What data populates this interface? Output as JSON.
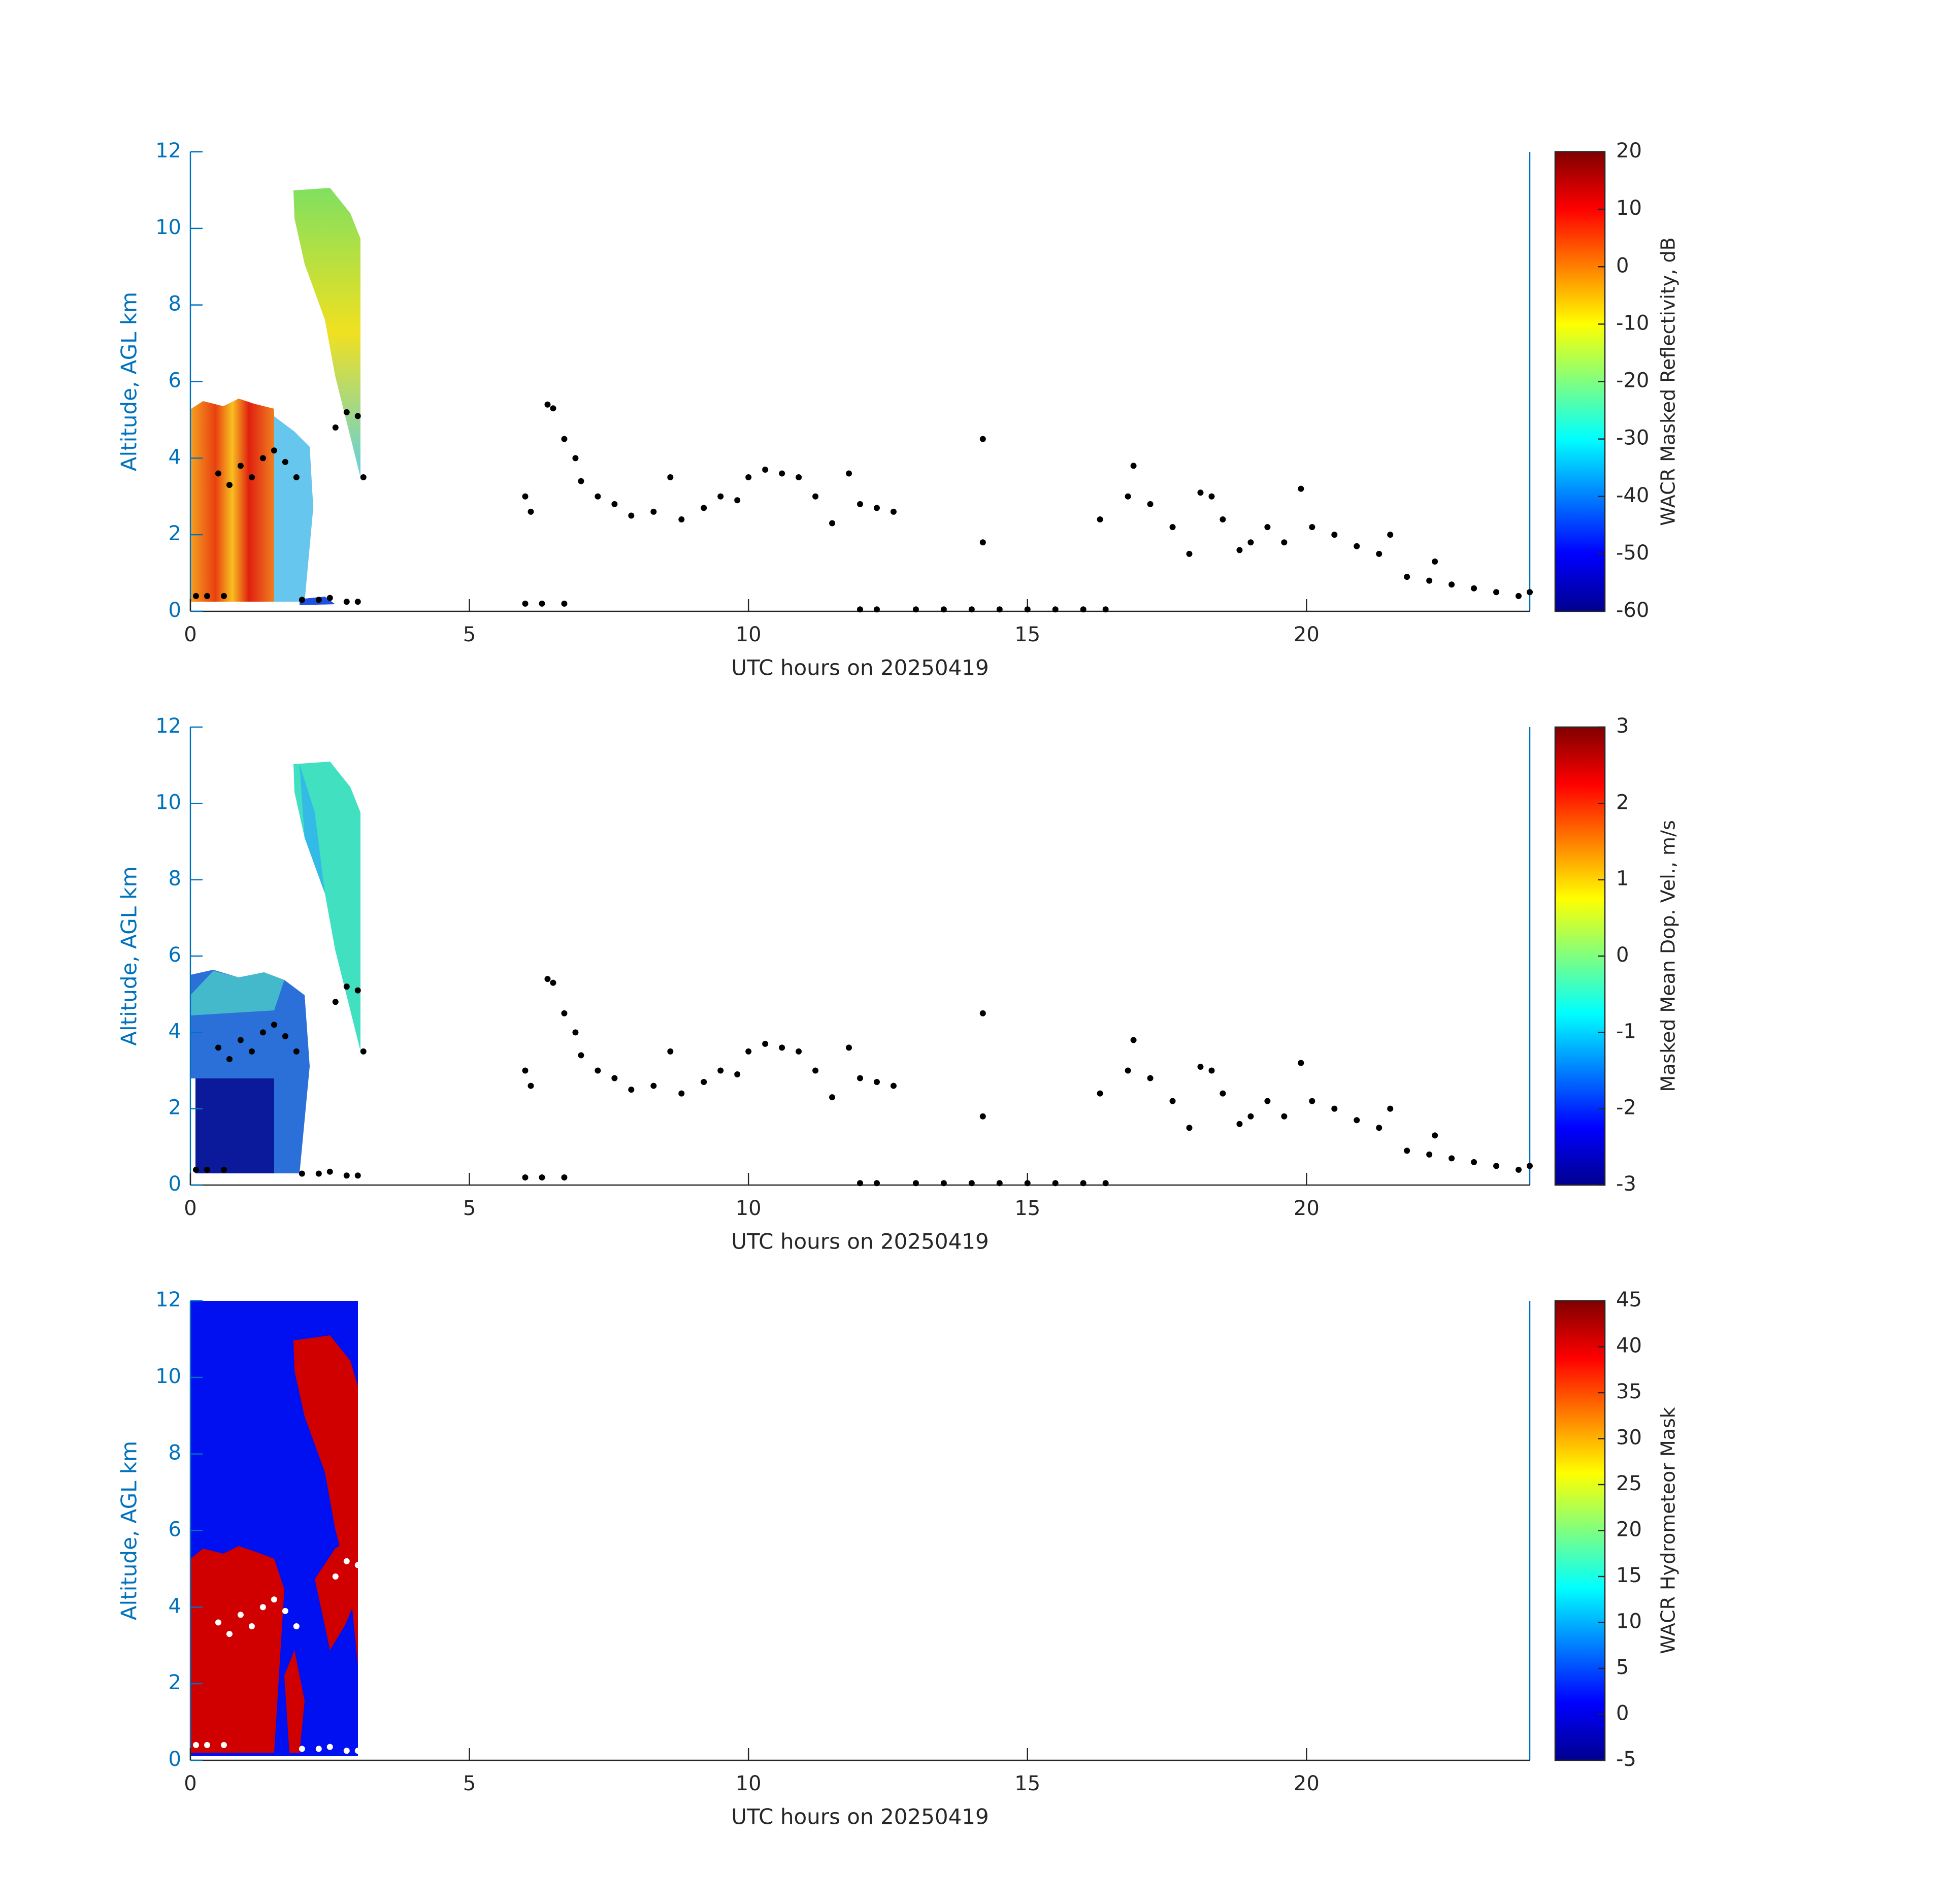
{
  "chart_data": [
    {
      "type": "scatter",
      "xlabel": "UTC hours on 20250419",
      "ylabel": "Altitude, AGL km",
      "xlim": [
        0,
        24
      ],
      "ylim": [
        0,
        12
      ],
      "xticks": [
        0,
        5,
        10,
        15,
        20
      ],
      "yticks": [
        0,
        2,
        4,
        6,
        8,
        10,
        12
      ],
      "color": "#000000",
      "x": [
        0.1,
        0.3,
        0.6,
        0.5,
        0.7,
        0.9,
        1.1,
        1.3,
        1.5,
        1.7,
        1.9,
        2.0,
        2.3,
        2.5,
        2.8,
        3.0,
        2.6,
        2.8,
        3.0,
        3.1,
        6.0,
        6.1,
        6.0,
        6.3,
        6.7,
        6.4,
        6.5,
        6.7,
        6.9,
        7.0,
        7.3,
        7.6,
        7.9,
        8.3,
        8.6,
        8.8,
        9.2,
        9.5,
        9.8,
        10.0,
        10.3,
        10.6,
        10.9,
        11.2,
        11.5,
        11.8,
        12.0,
        12.3,
        12.6,
        12.0,
        12.3,
        13.0,
        13.5,
        14.0,
        14.5,
        15.0,
        15.5,
        16.0,
        16.4,
        14.2,
        14.2,
        16.3,
        16.8,
        16.9,
        17.2,
        17.6,
        17.9,
        18.1,
        18.3,
        18.5,
        18.8,
        19.0,
        19.3,
        19.6,
        19.9,
        20.1,
        20.5,
        20.9,
        21.3,
        21.5,
        21.8,
        22.2,
        22.6,
        22.3,
        23.0,
        23.4,
        23.8,
        24.0
      ],
      "y": [
        0.4,
        0.4,
        0.4,
        3.6,
        3.3,
        3.8,
        3.5,
        4.0,
        4.2,
        3.9,
        3.5,
        0.3,
        0.3,
        0.35,
        0.25,
        0.25,
        4.8,
        5.2,
        5.1,
        3.5,
        3.0,
        2.6,
        0.2,
        0.2,
        0.2,
        5.4,
        5.3,
        4.5,
        4.0,
        3.4,
        3.0,
        2.8,
        2.5,
        2.6,
        3.5,
        2.4,
        2.7,
        3.0,
        2.9,
        3.5,
        3.7,
        3.6,
        3.5,
        3.0,
        2.3,
        3.6,
        2.8,
        2.7,
        2.6,
        0.05,
        0.05,
        0.05,
        0.05,
        0.05,
        0.05,
        0.05,
        0.05,
        0.05,
        0.05,
        4.5,
        1.8,
        2.4,
        3.0,
        3.8,
        2.8,
        2.2,
        1.5,
        3.1,
        3.0,
        2.4,
        1.6,
        1.8,
        2.2,
        1.8,
        3.2,
        2.2,
        2.0,
        1.7,
        1.5,
        2.0,
        0.9,
        0.8,
        0.7,
        1.3,
        0.6,
        0.5,
        0.4,
        0.5
      ],
      "colorbar": {
        "label": "WACR Masked Reflectivity, dB",
        "lim": [
          -60,
          20
        ],
        "ticks": [
          -60,
          -50,
          -40,
          -30,
          -20,
          -10,
          0,
          10,
          20
        ],
        "colormap": "jet"
      }
    },
    {
      "type": "scatter",
      "xlabel": "UTC hours on 20250419",
      "ylabel": "Altitude, AGL km",
      "xlim": [
        0,
        24
      ],
      "ylim": [
        0,
        12
      ],
      "xticks": [
        0,
        5,
        10,
        15,
        20
      ],
      "yticks": [
        0,
        2,
        4,
        6,
        8,
        10,
        12
      ],
      "color": "#000000",
      "x": [
        0.1,
        0.3,
        0.6,
        0.5,
        0.7,
        0.9,
        1.1,
        1.3,
        1.5,
        1.7,
        1.9,
        2.0,
        2.3,
        2.5,
        2.8,
        3.0,
        2.6,
        2.8,
        3.0,
        3.1,
        6.0,
        6.1,
        6.0,
        6.3,
        6.7,
        6.4,
        6.5,
        6.7,
        6.9,
        7.0,
        7.3,
        7.6,
        7.9,
        8.3,
        8.6,
        8.8,
        9.2,
        9.5,
        9.8,
        10.0,
        10.3,
        10.6,
        10.9,
        11.2,
        11.5,
        11.8,
        12.0,
        12.3,
        12.6,
        12.0,
        12.3,
        13.0,
        13.5,
        14.0,
        14.5,
        15.0,
        15.5,
        16.0,
        16.4,
        14.2,
        14.2,
        16.3,
        16.8,
        16.9,
        17.2,
        17.6,
        17.9,
        18.1,
        18.3,
        18.5,
        18.8,
        19.0,
        19.3,
        19.6,
        19.9,
        20.1,
        20.5,
        20.9,
        21.3,
        21.5,
        21.8,
        22.2,
        22.6,
        22.3,
        23.0,
        23.4,
        23.8,
        24.0
      ],
      "y": [
        0.4,
        0.4,
        0.4,
        3.6,
        3.3,
        3.8,
        3.5,
        4.0,
        4.2,
        3.9,
        3.5,
        0.3,
        0.3,
        0.35,
        0.25,
        0.25,
        4.8,
        5.2,
        5.1,
        3.5,
        3.0,
        2.6,
        0.2,
        0.2,
        0.2,
        5.4,
        5.3,
        4.5,
        4.0,
        3.4,
        3.0,
        2.8,
        2.5,
        2.6,
        3.5,
        2.4,
        2.7,
        3.0,
        2.9,
        3.5,
        3.7,
        3.6,
        3.5,
        3.0,
        2.3,
        3.6,
        2.8,
        2.7,
        2.6,
        0.05,
        0.05,
        0.05,
        0.05,
        0.05,
        0.05,
        0.05,
        0.05,
        0.05,
        0.05,
        4.5,
        1.8,
        2.4,
        3.0,
        3.8,
        2.8,
        2.2,
        1.5,
        3.1,
        3.0,
        2.4,
        1.6,
        1.8,
        2.2,
        1.8,
        3.2,
        2.2,
        2.0,
        1.7,
        1.5,
        2.0,
        0.9,
        0.8,
        0.7,
        1.3,
        0.6,
        0.5,
        0.4,
        0.5
      ],
      "colorbar": {
        "label": "Masked Mean Dop. Vel., m/s",
        "lim": [
          -3,
          3
        ],
        "ticks": [
          -3,
          -2,
          -1,
          0,
          1,
          2,
          3
        ],
        "colormap": "jet"
      }
    },
    {
      "type": "scatter",
      "xlabel": "UTC hours on 20250419",
      "ylabel": "Altitude, AGL km",
      "xlim": [
        0,
        24
      ],
      "ylim": [
        0,
        12
      ],
      "xticks": [
        0,
        5,
        10,
        15,
        20
      ],
      "yticks": [
        0,
        2,
        4,
        6,
        8,
        10,
        12
      ],
      "color": "#ffffff",
      "x": [
        0.1,
        0.3,
        0.6,
        0.5,
        0.7,
        0.9,
        1.1,
        1.3,
        1.5,
        1.7,
        1.9,
        2.0,
        2.3,
        2.5,
        2.8,
        3.0,
        2.6,
        2.8,
        3.0
      ],
      "y": [
        0.4,
        0.4,
        0.4,
        3.6,
        3.3,
        3.8,
        3.5,
        4.0,
        4.2,
        3.9,
        3.5,
        0.3,
        0.3,
        0.35,
        0.25,
        0.25,
        4.8,
        5.2,
        5.1
      ],
      "colorbar": {
        "label": "WACR Hydrometeor Mask",
        "lim": [
          -5,
          45
        ],
        "ticks": [
          -5,
          0,
          5,
          10,
          15,
          20,
          25,
          30,
          35,
          40,
          45
        ],
        "colormap": "jet"
      }
    }
  ]
}
